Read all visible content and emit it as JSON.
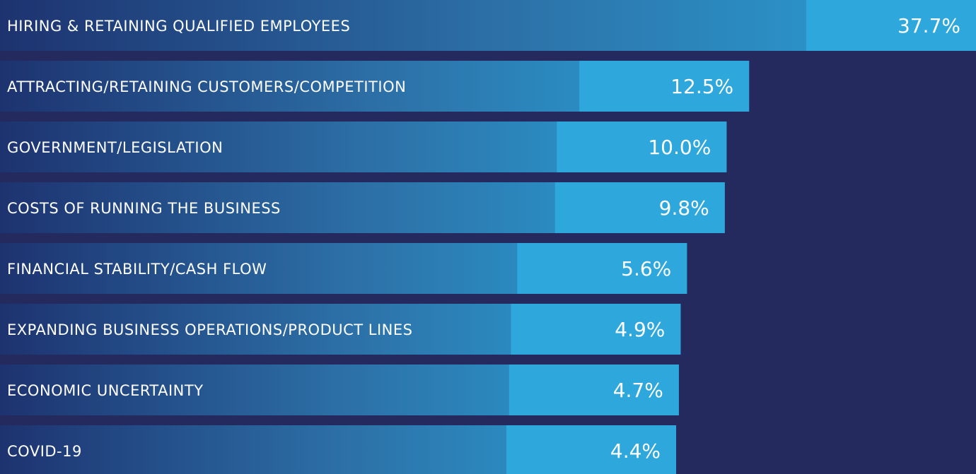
{
  "chart_data": {
    "type": "bar",
    "categories": [
      "HIRING & RETAINING QUALIFIED EMPLOYEES",
      "ATTRACTING/RETAINING CUSTOMERS/COMPETITION",
      "GOVERNMENT/LEGISLATION",
      "COSTS OF RUNNING THE BUSINESS",
      "FINANCIAL STABILITY/CASH FLOW",
      "EXPANDING BUSINESS OPERATIONS/PRODUCT LINES",
      "ECONOMIC UNCERTAINTY",
      "COVID-19"
    ],
    "values": [
      37.7,
      12.5,
      10.0,
      9.8,
      5.6,
      4.9,
      4.7,
      4.4
    ],
    "value_labels": [
      "37.7%",
      "12.5%",
      "10.0%",
      "9.8%",
      "5.6%",
      "4.9%",
      "4.7%",
      "4.4%"
    ],
    "color": "#2ea8dc"
  }
}
